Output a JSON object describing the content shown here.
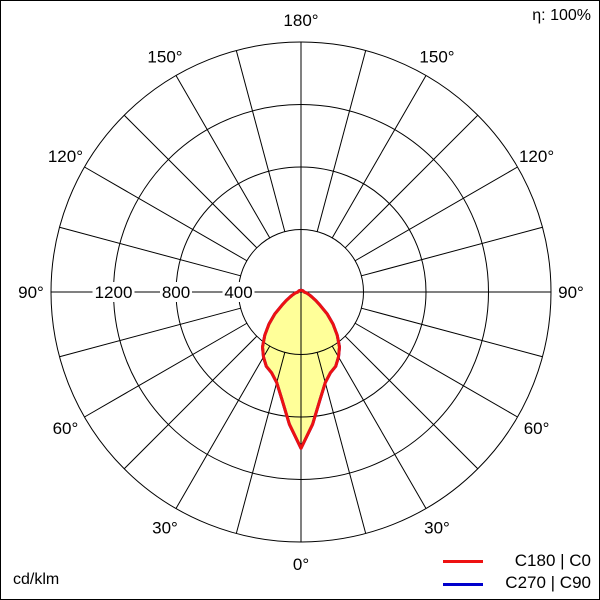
{
  "chart_data": {
    "type": "polar-line",
    "efficiency_label": "η: 100%",
    "unit_label": "cd/klm",
    "radial_ticks": [
      400,
      800,
      1200
    ],
    "radial_max": 1600,
    "angle_labels": [
      "0°",
      "30°",
      "60°",
      "90°",
      "120°",
      "150°",
      "180°"
    ],
    "angles": [
      0,
      5,
      10,
      15,
      20,
      25,
      30,
      35,
      40,
      45,
      50,
      55,
      60,
      65,
      70,
      75,
      80,
      85,
      90,
      120,
      150,
      180
    ],
    "series": [
      {
        "name": "C270 | C90",
        "color": "#0000cc",
        "values": [
          1000,
          850,
          700,
          600,
          550,
          525,
          480,
          430,
          360,
          290,
          220,
          150,
          110,
          80,
          60,
          45,
          35,
          25,
          20,
          15,
          12,
          10
        ]
      },
      {
        "name": "C180 | C0",
        "color": "#ee1111",
        "values": [
          1000,
          850,
          700,
          600,
          550,
          525,
          480,
          430,
          360,
          290,
          220,
          150,
          110,
          80,
          60,
          45,
          35,
          25,
          20,
          15,
          12,
          10
        ]
      }
    ],
    "fill_color": "#ffff99"
  }
}
